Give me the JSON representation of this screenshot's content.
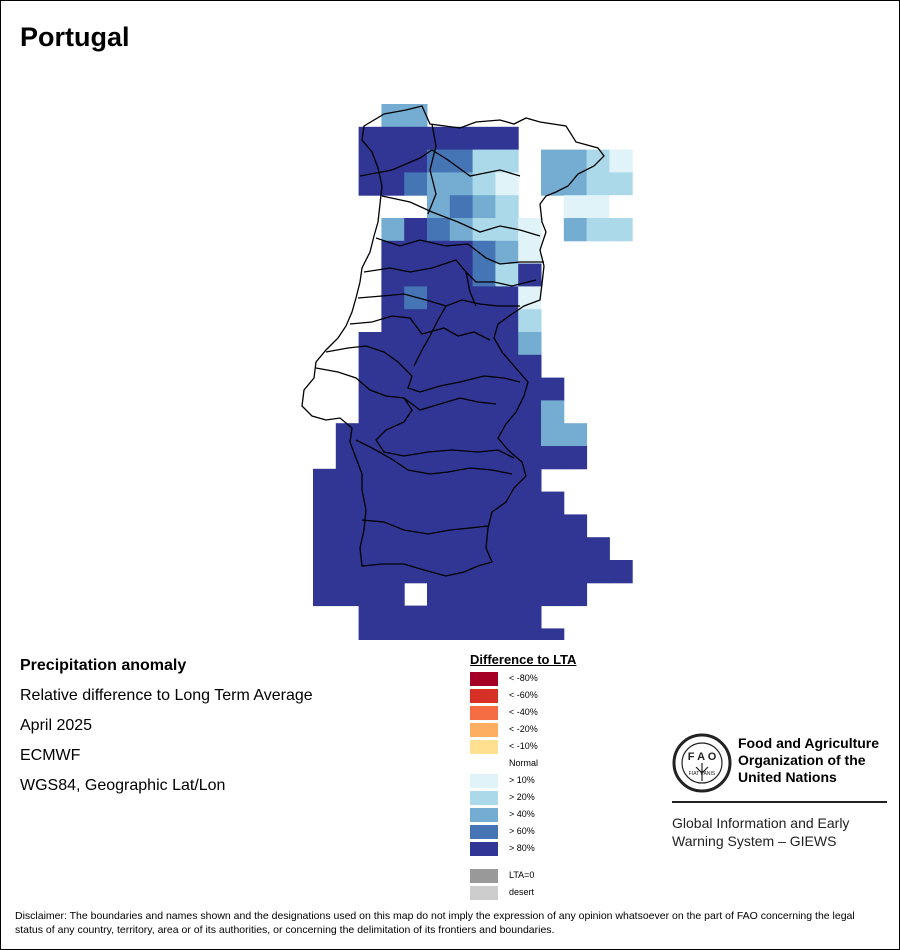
{
  "title": "Portugal",
  "info": {
    "variable": "Precipitation anomaly",
    "description": "Relative difference to Long Term Average",
    "period": "April 2025",
    "source": "ECMWF",
    "projection": "WGS84, Geographic Lat/Lon"
  },
  "legend": {
    "title": "Difference to LTA",
    "items": [
      {
        "label": "< -80%",
        "color": "#a50026"
      },
      {
        "label": "< -60%",
        "color": "#d73027"
      },
      {
        "label": "< -40%",
        "color": "#f46d43"
      },
      {
        "label": "< -20%",
        "color": "#fdae61"
      },
      {
        "label": "< -10%",
        "color": "#fee090"
      },
      {
        "label": "Normal",
        "color": "#ffffff"
      },
      {
        "label": "> 10%",
        "color": "#e0f3f8"
      },
      {
        "label": "> 20%",
        "color": "#abd9e9"
      },
      {
        "label": "> 40%",
        "color": "#74add1"
      },
      {
        "label": "> 60%",
        "color": "#4575b4"
      },
      {
        "label": "> 80%",
        "color": "#313695"
      },
      {
        "label": "LTA=0",
        "color": "#999999"
      },
      {
        "label": "desert",
        "color": "#cccccc"
      }
    ]
  },
  "logo": {
    "org_name_line1": "Food and Agriculture",
    "org_name_line2": "Organization of the",
    "org_name_line3": "United Nations",
    "letters": "F A O",
    "motto": "FIAT PANIS",
    "system_line1": "Global Information and Early",
    "system_line2": "Warning System – GIEWS"
  },
  "disclaimer": "Disclaimer: The boundaries and names shown and the designations used on this map do not imply the expression of any opinion whatsoever on the part of FAO concerning the legal status of any country, territory, area or of its authorities, or concerning the delimitation of its frontiers and boundaries."
}
